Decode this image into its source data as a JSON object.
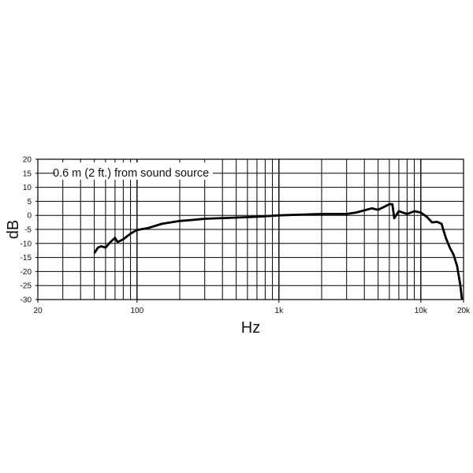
{
  "chart_data": {
    "type": "line",
    "title": "",
    "annotation": "0.6 m (2 ft.) from sound source",
    "xlabel": "Hz",
    "ylabel": "dB",
    "xscale": "log",
    "xlim": [
      20,
      20000
    ],
    "ylim": [
      -30,
      20
    ],
    "grid": true,
    "xticks": [
      {
        "v": 20,
        "label": "20"
      },
      {
        "v": 100,
        "label": "100"
      },
      {
        "v": 1000,
        "label": "1k"
      },
      {
        "v": 10000,
        "label": "10k"
      },
      {
        "v": 20000,
        "label": "20k"
      }
    ],
    "yticks": [
      20,
      15,
      10,
      5,
      0,
      -5,
      -10,
      -15,
      -20,
      -25,
      -30
    ],
    "ytick_labels": [
      "20",
      "15",
      "10",
      "5",
      "0",
      "-5",
      "-10",
      "-15",
      "-20",
      "-25",
      "-30"
    ],
    "line_color": "#000000",
    "x": [
      50,
      53,
      56,
      60,
      65,
      70,
      73,
      80,
      90,
      100,
      120,
      150,
      200,
      250,
      300,
      500,
      700,
      1000,
      1500,
      2000,
      3000,
      3500,
      4500,
      5000,
      5500,
      6000,
      6300,
      6500,
      7000,
      8000,
      9000,
      10000,
      11000,
      12000,
      13000,
      14000,
      15000,
      16000,
      17000,
      18000,
      19000,
      19500
    ],
    "y": [
      -13.5,
      -11.5,
      -11,
      -11.5,
      -9.5,
      -8,
      -9.5,
      -8.5,
      -6.5,
      -5.2,
      -4.5,
      -3,
      -2,
      -1.6,
      -1.2,
      -0.8,
      -0.5,
      0,
      0.3,
      0.5,
      0.5,
      1,
      2.5,
      2,
      3,
      4,
      4,
      -1,
      1.5,
      0.5,
      1.5,
      1,
      -0.5,
      -2.5,
      -2.3,
      -3,
      -8,
      -11.5,
      -14,
      -18,
      -25,
      -30
    ]
  }
}
